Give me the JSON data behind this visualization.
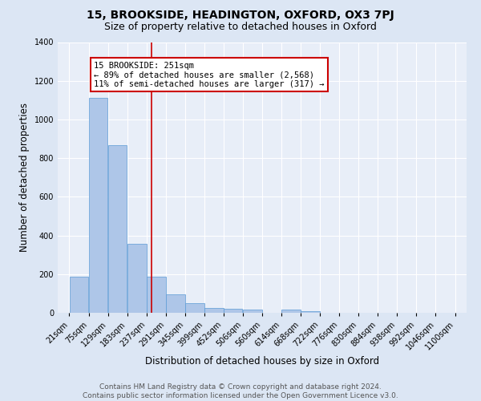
{
  "title1": "15, BROOKSIDE, HEADINGTON, OXFORD, OX3 7PJ",
  "title2": "Size of property relative to detached houses in Oxford",
  "xlabel": "Distribution of detached houses by size in Oxford",
  "ylabel": "Number of detached properties",
  "bin_labels": [
    "21sqm",
    "75sqm",
    "129sqm",
    "183sqm",
    "237sqm",
    "291sqm",
    "345sqm",
    "399sqm",
    "452sqm",
    "506sqm",
    "560sqm",
    "614sqm",
    "668sqm",
    "722sqm",
    "776sqm",
    "830sqm",
    "884sqm",
    "938sqm",
    "992sqm",
    "1046sqm",
    "1100sqm"
  ],
  "bin_edges": [
    21,
    75,
    129,
    183,
    237,
    291,
    345,
    399,
    452,
    506,
    560,
    614,
    668,
    722,
    776,
    830,
    884,
    938,
    992,
    1046,
    1100
  ],
  "bar_heights": [
    185,
    1110,
    865,
    355,
    185,
    95,
    50,
    25,
    20,
    15,
    0,
    15,
    10,
    0,
    0,
    0,
    0,
    0,
    0,
    0
  ],
  "bar_color": "#aec6e8",
  "bar_edge_color": "#5b9bd5",
  "vline_x": 251,
  "vline_color": "#cc0000",
  "annotation_line1": "15 BROOKSIDE: 251sqm",
  "annotation_line2": "← 89% of detached houses are smaller (2,568)",
  "annotation_line3": "11% of semi-detached houses are larger (317) →",
  "annotation_box_color": "#cc0000",
  "ylim": [
    0,
    1400
  ],
  "yticks": [
    0,
    200,
    400,
    600,
    800,
    1000,
    1200,
    1400
  ],
  "bg_color": "#e8eef8",
  "grid_color": "#ffffff",
  "footer_text": "Contains HM Land Registry data © Crown copyright and database right 2024.\nContains public sector information licensed under the Open Government Licence v3.0.",
  "title1_fontsize": 10,
  "title2_fontsize": 9,
  "xlabel_fontsize": 8.5,
  "ylabel_fontsize": 8.5,
  "tick_fontsize": 7,
  "footer_fontsize": 6.5,
  "annot_fontsize": 7.5
}
